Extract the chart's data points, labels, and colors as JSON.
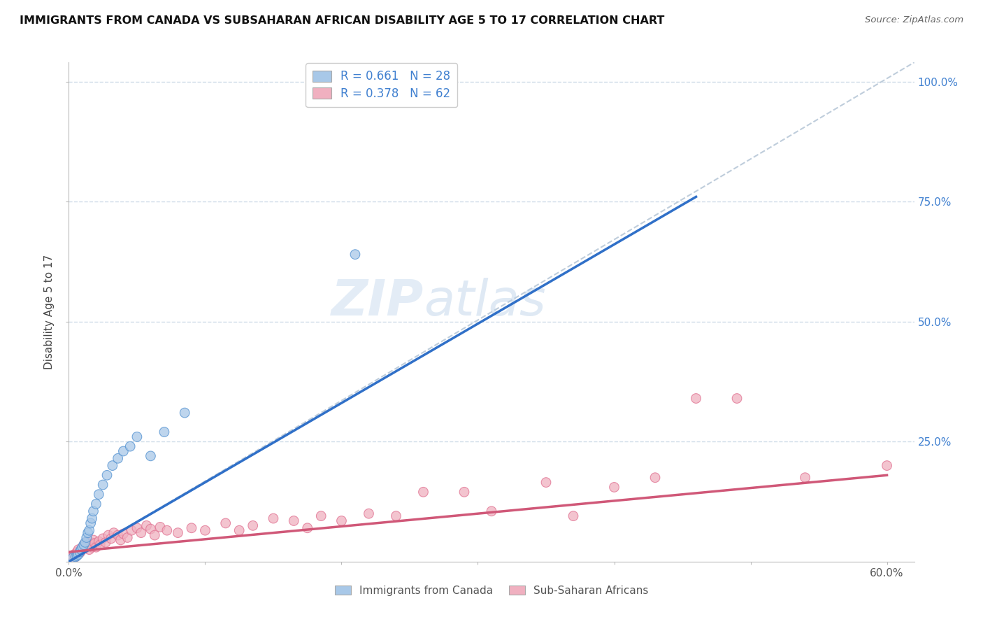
{
  "title": "IMMIGRANTS FROM CANADA VS SUBSAHARAN AFRICAN DISABILITY AGE 5 TO 17 CORRELATION CHART",
  "source": "Source: ZipAtlas.com",
  "ylabel": "Disability Age 5 to 17",
  "xlim": [
    0.0,
    0.62
  ],
  "ylim": [
    0.0,
    1.04
  ],
  "legend1_label": "R = 0.661   N = 28",
  "legend2_label": "R = 0.378   N = 62",
  "legend_bottom_label1": "Immigrants from Canada",
  "legend_bottom_label2": "Sub-Saharan Africans",
  "blue_fill": "#a8c8e8",
  "blue_edge": "#5090d0",
  "pink_fill": "#f0b0c0",
  "pink_edge": "#e07090",
  "blue_line_color": "#3070c8",
  "pink_line_color": "#d05878",
  "ref_line_color": "#b8c8d8",
  "grid_color": "#d0dce8",
  "r_label_color": "#4080d0",
  "blue_trend_x": [
    0.0,
    0.46
  ],
  "blue_trend_y": [
    0.0,
    0.76
  ],
  "pink_trend_x": [
    0.0,
    0.6
  ],
  "pink_trend_y": [
    0.02,
    0.18
  ],
  "blue_scatter_x": [
    0.003,
    0.005,
    0.006,
    0.007,
    0.008,
    0.009,
    0.01,
    0.011,
    0.012,
    0.013,
    0.014,
    0.015,
    0.016,
    0.017,
    0.018,
    0.02,
    0.022,
    0.025,
    0.028,
    0.032,
    0.036,
    0.04,
    0.045,
    0.05,
    0.06,
    0.07,
    0.085,
    0.21
  ],
  "blue_scatter_y": [
    0.008,
    0.01,
    0.012,
    0.015,
    0.02,
    0.025,
    0.03,
    0.035,
    0.04,
    0.05,
    0.06,
    0.065,
    0.08,
    0.09,
    0.105,
    0.12,
    0.14,
    0.16,
    0.18,
    0.2,
    0.215,
    0.23,
    0.24,
    0.26,
    0.22,
    0.27,
    0.31,
    0.64
  ],
  "pink_scatter_x": [
    0.002,
    0.003,
    0.004,
    0.005,
    0.006,
    0.007,
    0.008,
    0.009,
    0.01,
    0.011,
    0.012,
    0.013,
    0.014,
    0.015,
    0.016,
    0.017,
    0.018,
    0.019,
    0.02,
    0.022,
    0.023,
    0.025,
    0.027,
    0.029,
    0.031,
    0.033,
    0.036,
    0.038,
    0.04,
    0.043,
    0.046,
    0.05,
    0.053,
    0.057,
    0.06,
    0.063,
    0.067,
    0.072,
    0.08,
    0.09,
    0.1,
    0.115,
    0.125,
    0.135,
    0.15,
    0.165,
    0.175,
    0.185,
    0.2,
    0.22,
    0.24,
    0.26,
    0.29,
    0.31,
    0.35,
    0.37,
    0.4,
    0.43,
    0.46,
    0.49,
    0.54,
    0.6
  ],
  "pink_scatter_y": [
    0.01,
    0.012,
    0.015,
    0.01,
    0.02,
    0.025,
    0.018,
    0.022,
    0.03,
    0.035,
    0.028,
    0.04,
    0.035,
    0.025,
    0.04,
    0.03,
    0.045,
    0.038,
    0.03,
    0.042,
    0.035,
    0.048,
    0.04,
    0.055,
    0.048,
    0.06,
    0.055,
    0.045,
    0.058,
    0.05,
    0.065,
    0.07,
    0.06,
    0.075,
    0.068,
    0.055,
    0.072,
    0.065,
    0.06,
    0.07,
    0.065,
    0.08,
    0.065,
    0.075,
    0.09,
    0.085,
    0.07,
    0.095,
    0.085,
    0.1,
    0.095,
    0.145,
    0.145,
    0.105,
    0.165,
    0.095,
    0.155,
    0.175,
    0.34,
    0.34,
    0.175,
    0.2
  ],
  "watermark_zip": "ZIP",
  "watermark_atlas": "atlas",
  "background_color": "#ffffff"
}
